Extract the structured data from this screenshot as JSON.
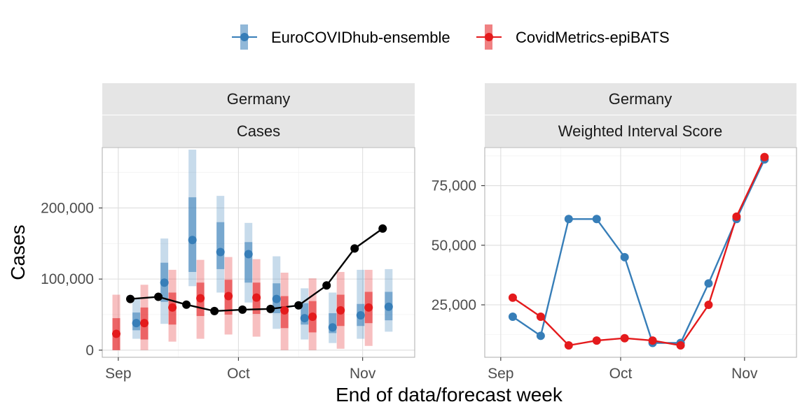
{
  "chart_data": {
    "type": "line",
    "legend": {
      "position": "top"
    },
    "x_axis_title": "End of data/forecast week",
    "colors": {
      "EuroCOVIDhub-ensemble": "#377eb8",
      "CovidMetrics-epiBATS": "#e41a1c",
      "observed": "#000000"
    },
    "panels": [
      {
        "strip_top": "Germany",
        "strip_bottom": "Cases",
        "ylabel": "Cases",
        "ylim": [
          -10000,
          285000
        ],
        "y_ticks": [
          0,
          100000,
          200000
        ],
        "y_tick_labels": [
          "0",
          "100,000",
          "200,000"
        ],
        "x_ticks": [
          "Sep",
          "Oct",
          "Nov"
        ],
        "observed": {
          "name": "observed",
          "points": [
            {
              "date": "2021-09-04",
              "value": 72000
            },
            {
              "date": "2021-09-11",
              "value": 75000
            },
            {
              "date": "2021-09-18",
              "value": 64000
            },
            {
              "date": "2021-09-25",
              "value": 55000
            },
            {
              "date": "2021-10-02",
              "value": 57000
            },
            {
              "date": "2021-10-09",
              "value": 58000
            },
            {
              "date": "2021-10-16",
              "value": 63000
            },
            {
              "date": "2021-10-23",
              "value": 91000
            },
            {
              "date": "2021-10-30",
              "value": 143000
            },
            {
              "date": "2021-11-06",
              "value": 171000
            }
          ]
        },
        "series": [
          {
            "name": "EuroCOVIDhub-ensemble",
            "forecasts": [
              {
                "date": "2021-09-04",
                "median": 38000,
                "q25": 28000,
                "q75": 53000,
                "q05": 16000,
                "q95": 72000
              },
              {
                "date": "2021-09-11",
                "median": 95000,
                "q25": 68000,
                "q75": 123000,
                "q05": 37000,
                "q95": 157000
              },
              {
                "date": "2021-09-18",
                "median": 155000,
                "q25": 110000,
                "q75": 215000,
                "q05": 90000,
                "q95": 282000
              },
              {
                "date": "2021-09-25",
                "median": 138000,
                "q25": 114000,
                "q75": 180000,
                "q05": 81000,
                "q95": 217000
              },
              {
                "date": "2021-10-02",
                "median": 135000,
                "q25": 95000,
                "q75": 152000,
                "q05": 67000,
                "q95": 179000
              },
              {
                "date": "2021-10-09",
                "median": 72000,
                "q25": 52000,
                "q75": 94000,
                "q05": 30000,
                "q95": 132000
              },
              {
                "date": "2021-10-16",
                "median": 45000,
                "q25": 36000,
                "q75": 66000,
                "q05": 15000,
                "q95": 87000
              },
              {
                "date": "2021-10-23",
                "median": 32000,
                "q25": 24000,
                "q75": 52000,
                "q05": 10000,
                "q95": 81000
              },
              {
                "date": "2021-10-30",
                "median": 49000,
                "q25": 34000,
                "q75": 65000,
                "q05": 16000,
                "q95": 113000
              },
              {
                "date": "2021-11-06",
                "median": 61000,
                "q25": 42000,
                "q75": 82000,
                "q05": 26000,
                "q95": 114000
              }
            ]
          },
          {
            "name": "CovidMetrics-epiBATS",
            "forecasts": [
              {
                "date": "2021-09-04",
                "median": 23000,
                "q25": 0,
                "q75": 45000,
                "q05": 0,
                "q95": 78000
              },
              {
                "date": "2021-09-11",
                "median": 38000,
                "q25": 15000,
                "q75": 60000,
                "q05": 0,
                "q95": 92000
              },
              {
                "date": "2021-09-18",
                "median": 60000,
                "q25": 36000,
                "q75": 81000,
                "q05": 12000,
                "q95": 113000
              },
              {
                "date": "2021-09-25",
                "median": 73000,
                "q25": 48000,
                "q75": 95000,
                "q05": 16000,
                "q95": 127000
              },
              {
                "date": "2021-10-02",
                "median": 76000,
                "q25": 50000,
                "q75": 99000,
                "q05": 22000,
                "q95": 131000
              },
              {
                "date": "2021-10-09",
                "median": 74000,
                "q25": 51000,
                "q75": 95000,
                "q05": 19000,
                "q95": 128000
              },
              {
                "date": "2021-10-16",
                "median": 56000,
                "q25": 31000,
                "q75": 76000,
                "q05": 0,
                "q95": 109000
              },
              {
                "date": "2021-10-23",
                "median": 47000,
                "q25": 25000,
                "q75": 69000,
                "q05": 0,
                "q95": 101000
              },
              {
                "date": "2021-10-30",
                "median": 56000,
                "q25": 34000,
                "q75": 78000,
                "q05": 2000,
                "q95": 110000
              },
              {
                "date": "2021-11-06",
                "median": 60000,
                "q25": 38000,
                "q75": 82000,
                "q05": 6000,
                "q95": 113000
              }
            ]
          }
        ]
      },
      {
        "strip_top": "Germany",
        "strip_bottom": "Weighted Interval Score",
        "ylabel": "",
        "ylim": [
          3000,
          91000
        ],
        "y_ticks": [
          25000,
          50000,
          75000
        ],
        "y_tick_labels": [
          "25,000",
          "50,000",
          "75,000"
        ],
        "x_ticks": [
          "Sep",
          "Oct",
          "Nov"
        ],
        "series": [
          {
            "name": "EuroCOVIDhub-ensemble",
            "points": [
              {
                "date": "2021-09-04",
                "value": 20000
              },
              {
                "date": "2021-09-11",
                "value": 12000
              },
              {
                "date": "2021-09-18",
                "value": 61000
              },
              {
                "date": "2021-09-25",
                "value": 61000
              },
              {
                "date": "2021-10-02",
                "value": 45000
              },
              {
                "date": "2021-10-09",
                "value": 9000
              },
              {
                "date": "2021-10-16",
                "value": 9000
              },
              {
                "date": "2021-10-23",
                "value": 34000
              },
              {
                "date": "2021-10-30",
                "value": 61000
              },
              {
                "date": "2021-11-06",
                "value": 86000
              }
            ]
          },
          {
            "name": "CovidMetrics-epiBATS",
            "points": [
              {
                "date": "2021-09-04",
                "value": 28000
              },
              {
                "date": "2021-09-11",
                "value": 20000
              },
              {
                "date": "2021-09-18",
                "value": 8000
              },
              {
                "date": "2021-09-25",
                "value": 10000
              },
              {
                "date": "2021-10-02",
                "value": 11000
              },
              {
                "date": "2021-10-09",
                "value": 10000
              },
              {
                "date": "2021-10-16",
                "value": 8000
              },
              {
                "date": "2021-10-23",
                "value": 25000
              },
              {
                "date": "2021-10-30",
                "value": 62000
              },
              {
                "date": "2021-11-06",
                "value": 87000
              }
            ]
          }
        ]
      }
    ]
  }
}
